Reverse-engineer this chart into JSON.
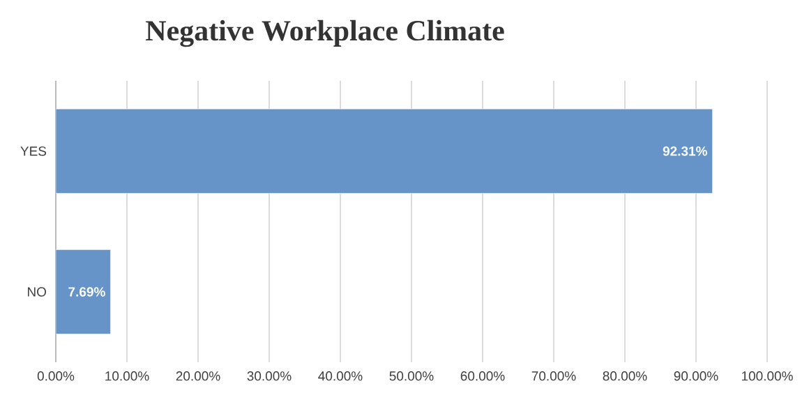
{
  "chart_data": {
    "type": "bar",
    "orientation": "horizontal",
    "title": "Negative Workplace Climate",
    "categories": [
      "YES",
      "NO"
    ],
    "values": [
      92.31,
      7.69
    ],
    "value_labels": [
      "92.31%",
      "7.69%"
    ],
    "color": "#6794c8",
    "xlim": [
      0,
      100
    ],
    "xticks": [
      {
        "value": 0,
        "label": "0.00%"
      },
      {
        "value": 10,
        "label": "10.00%"
      },
      {
        "value": 20,
        "label": "20.00%"
      },
      {
        "value": 30,
        "label": "30.00%"
      },
      {
        "value": 40,
        "label": "40.00%"
      },
      {
        "value": 50,
        "label": "50.00%"
      },
      {
        "value": 60,
        "label": "60.00%"
      },
      {
        "value": 70,
        "label": "70.00%"
      },
      {
        "value": 80,
        "label": "80.00%"
      },
      {
        "value": 90,
        "label": "90.00%"
      },
      {
        "value": 100,
        "label": "100.00%"
      }
    ],
    "grid": "x"
  }
}
